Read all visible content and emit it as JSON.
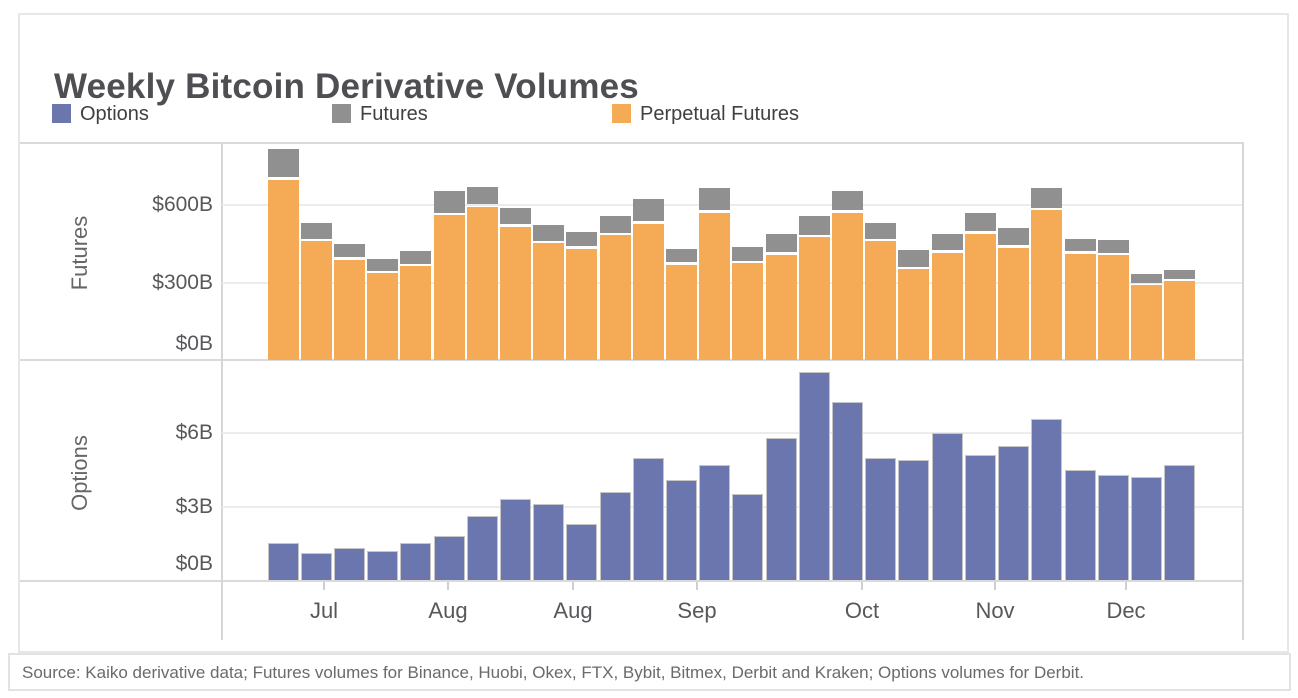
{
  "title": "Weekly Bitcoin Derivative Volumes",
  "legend": [
    {
      "label": "Options",
      "color": "#6b76af"
    },
    {
      "label": "Futures",
      "color": "#909090"
    },
    {
      "label": "Perpetual Futures",
      "color": "#f5ab55"
    }
  ],
  "source": "Source: Kaiko derivative data; Futures volumes for Binance, Huobi, Okex, FTX, Bybit, Bitmex, Derbit and Kraken; Options volumes for Derbit.",
  "chart_data": {
    "type": "bar",
    "stacked_top_panel": true,
    "n_bars": 28,
    "x_tick_labels": [
      "Jul",
      "Aug",
      "Aug",
      "Sep",
      "Oct",
      "Nov",
      "Dec"
    ],
    "panels": [
      {
        "name": "futures",
        "ylabel": "Futures",
        "yticks": [
          "$0B",
          "$300B",
          "$600B"
        ],
        "ytick_values": [
          0,
          300,
          600
        ],
        "ylim": [
          0,
          850
        ],
        "unit": "billions USD",
        "series": [
          {
            "name": "Perpetual Futures",
            "color": "#f5ab55",
            "values": [
              700,
              460,
              390,
              336,
              363,
              561,
              594,
              517,
              453,
              432,
              484,
              529,
              370,
              572,
              375,
              409,
              477,
              572,
              460,
              352,
              417,
              490,
              436,
              581,
              413,
              406,
              290,
              305
            ]
          },
          {
            "name": "Futures",
            "color": "#909090",
            "values": [
              110,
              62,
              50,
              46,
              49,
              87,
              68,
              62,
              62,
              54,
              65,
              88,
              52,
              84,
              53,
              69,
              71,
              76,
              62,
              65,
              63,
              71,
              65,
              75,
              45,
              49,
              33,
              33
            ]
          }
        ]
      },
      {
        "name": "options",
        "ylabel": "Options",
        "yticks": [
          "$0B",
          "$3B",
          "$6B"
        ],
        "ytick_values": [
          0,
          3,
          6
        ],
        "ylim": [
          0,
          9
        ],
        "unit": "billions USD",
        "series": [
          {
            "name": "Options",
            "color": "#6b76af",
            "values": [
              1.5,
              1.1,
              1.3,
              1.2,
              1.5,
              1.8,
              2.6,
              3.3,
              3.1,
              2.3,
              3.6,
              5.0,
              4.1,
              4.7,
              3.5,
              5.8,
              8.5,
              7.3,
              5.0,
              4.9,
              6.0,
              5.1,
              5.5,
              6.6,
              4.5,
              4.3,
              4.2,
              4.7
            ]
          }
        ]
      }
    ]
  }
}
